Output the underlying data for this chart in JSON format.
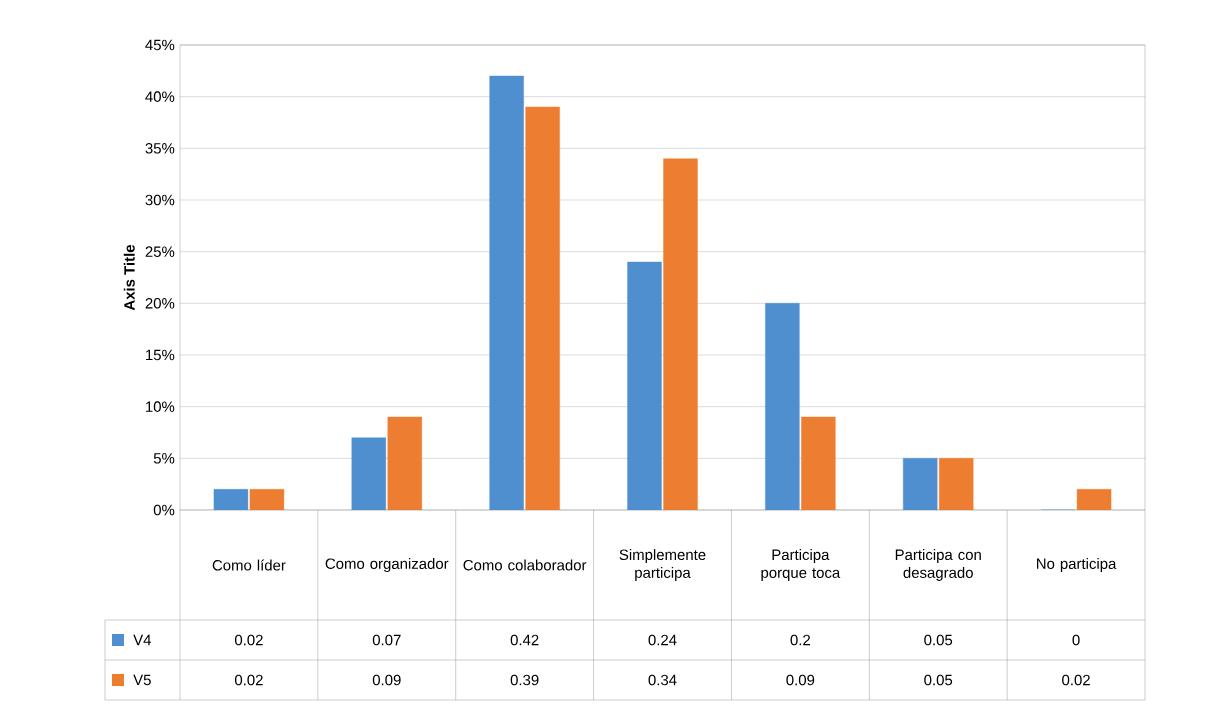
{
  "chart_data": {
    "type": "bar",
    "ylabel": "Axis Title",
    "categories": [
      "Como líder",
      "Como organizador",
      "Como colaborador",
      "Simplemente participa",
      "Participa porque toca",
      "Participa con desagrado",
      "No participa"
    ],
    "series": [
      {
        "name": "V4",
        "color": "#4f8fd0",
        "values": [
          0.02,
          0.07,
          0.42,
          0.24,
          0.2,
          0.05,
          0
        ]
      },
      {
        "name": "V5",
        "color": "#ed7d31",
        "values": [
          0.02,
          0.09,
          0.39,
          0.34,
          0.09,
          0.05,
          0.02
        ]
      }
    ],
    "ylim": [
      0,
      0.45
    ],
    "yticks": [
      {
        "value": 0,
        "label": "0%"
      },
      {
        "value": 0.05,
        "label": "5%"
      },
      {
        "value": 0.1,
        "label": "10%"
      },
      {
        "value": 0.15,
        "label": "15%"
      },
      {
        "value": 0.2,
        "label": "20%"
      },
      {
        "value": 0.25,
        "label": "25%"
      },
      {
        "value": 0.3,
        "label": "30%"
      },
      {
        "value": 0.35,
        "label": "35%"
      },
      {
        "value": 0.4,
        "label": "40%"
      },
      {
        "value": 0.45,
        "label": "45%"
      }
    ],
    "grid": "y",
    "data_labels": true,
    "legend": "bottom"
  }
}
